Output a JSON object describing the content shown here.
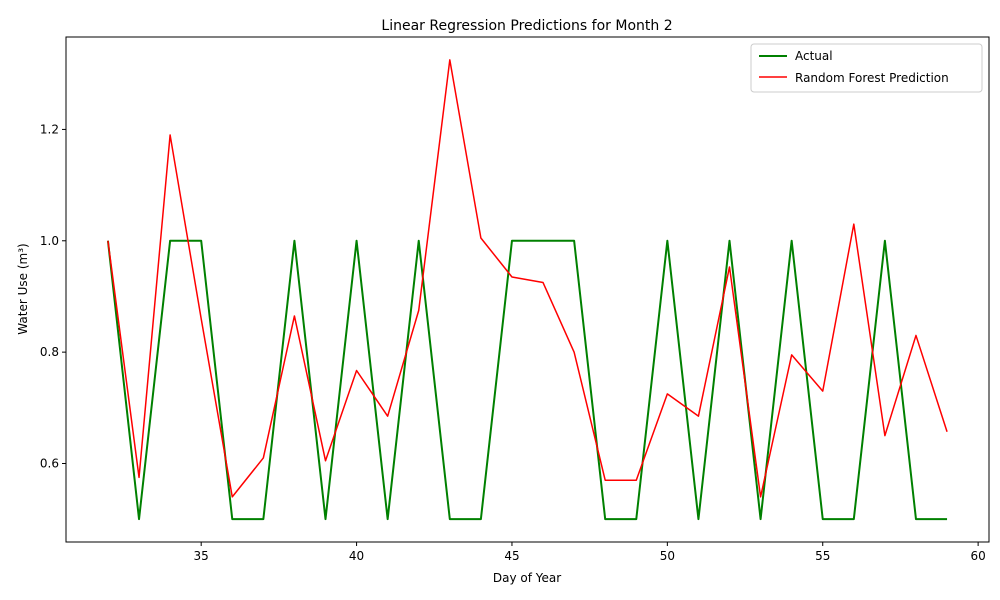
{
  "chart_data": {
    "type": "line",
    "title": "Linear Regression Predictions for Month 2",
    "xlabel": "Day of Year",
    "ylabel": "Water Use (m³)",
    "xlim": [
      30.65,
      60.35
    ],
    "ylim": [
      0.459,
      1.366
    ],
    "x_ticks": [
      35,
      40,
      45,
      50,
      55,
      60
    ],
    "y_ticks": [
      0.6,
      0.8,
      1.0,
      1.2
    ],
    "x_tick_labels": [
      "35",
      "40",
      "45",
      "50",
      "55",
      "60"
    ],
    "y_tick_labels": [
      "0.6",
      "0.8",
      "1.0",
      "1.2"
    ],
    "grid": false,
    "legend_position": "upper right",
    "x": [
      32,
      33,
      34,
      35,
      36,
      37,
      38,
      39,
      40,
      41,
      42,
      43,
      44,
      45,
      46,
      47,
      48,
      49,
      50,
      51,
      52,
      53,
      54,
      55,
      56,
      57,
      58,
      59
    ],
    "series": [
      {
        "name": "Actual",
        "color": "#008000",
        "values": [
          1.0,
          0.5,
          1.0,
          1.0,
          0.5,
          0.5,
          1.0,
          0.5,
          1.0,
          0.5,
          1.0,
          0.5,
          0.5,
          1.0,
          1.0,
          1.0,
          0.5,
          0.5,
          1.0,
          0.5,
          1.0,
          0.5,
          1.0,
          0.5,
          0.5,
          1.0,
          0.5,
          0.5
        ]
      },
      {
        "name": "Random Forest Prediction",
        "color": "#ff0000",
        "values": [
          1.0,
          0.575,
          1.19,
          0.86,
          0.54,
          0.61,
          0.865,
          0.605,
          0.767,
          0.685,
          0.875,
          1.325,
          1.005,
          0.935,
          0.925,
          0.8,
          0.57,
          0.57,
          0.725,
          0.685,
          0.953,
          0.54,
          0.795,
          0.73,
          1.03,
          0.65,
          0.83,
          0.657
        ]
      }
    ]
  }
}
